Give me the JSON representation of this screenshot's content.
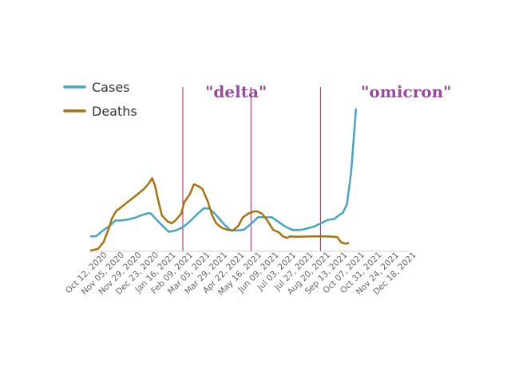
{
  "chart_data": {
    "type": "line",
    "title": "",
    "xlabel": "",
    "ylabel": "",
    "x_ticks": [
      "Oct 12, 2020",
      "Nov 05, 2020",
      "Nov 29, 2020",
      "Dec 23, 2020",
      "Jan 16, 2021",
      "Feb 09, 2021",
      "Mar 05, 2021",
      "Mar 29, 2021",
      "Apr 22, 2021",
      "May 16, 2021",
      "Jun 09, 2021",
      "Jul 03, 2021",
      "Jul 27, 2021",
      "Aug 20, 2021",
      "Sep 13, 2021",
      "Oct 07, 2021",
      "Oct 31, 2021",
      "Nov 24, 2021",
      "Dec 18, 2021"
    ],
    "x_range": [
      "2020-10-12",
      "2022-01-12"
    ],
    "y_scale": "relative (no y-axis shown)",
    "ylim": [
      0,
      100
    ],
    "grid": false,
    "legend_position": "top-left",
    "series": [
      {
        "name": "Cases",
        "color": "#45a6c4",
        "points": [
          [
            "2020-10-12",
            10.6
          ],
          [
            "2020-10-19",
            10.6
          ],
          [
            "2020-10-29",
            14.6
          ],
          [
            "2020-11-08",
            18.0
          ],
          [
            "2020-11-16",
            21.7
          ],
          [
            "2020-11-24",
            21.7
          ],
          [
            "2020-12-04",
            22.4
          ],
          [
            "2020-12-14",
            23.6
          ],
          [
            "2020-12-24",
            25.5
          ],
          [
            "2021-01-02",
            26.8
          ],
          [
            "2021-01-06",
            26.7
          ],
          [
            "2021-01-14",
            22.4
          ],
          [
            "2021-01-26",
            16.5
          ],
          [
            "2021-02-01",
            13.7
          ],
          [
            "2021-02-11",
            14.8
          ],
          [
            "2021-02-21",
            16.9
          ],
          [
            "2021-03-03",
            21.0
          ],
          [
            "2021-03-13",
            25.9
          ],
          [
            "2021-03-23",
            30.2
          ],
          [
            "2021-03-31",
            30.2
          ],
          [
            "2021-04-10",
            25.5
          ],
          [
            "2021-04-20",
            19.7
          ],
          [
            "2021-04-30",
            15.0
          ],
          [
            "2021-05-10",
            14.6
          ],
          [
            "2021-05-20",
            15.3
          ],
          [
            "2021-05-30",
            19.3
          ],
          [
            "2021-06-09",
            24.0
          ],
          [
            "2021-06-19",
            24.0
          ],
          [
            "2021-06-29",
            24.0
          ],
          [
            "2021-07-09",
            20.6
          ],
          [
            "2021-07-19",
            17.2
          ],
          [
            "2021-07-29",
            15.0
          ],
          [
            "2021-08-08",
            15.0
          ],
          [
            "2021-08-18",
            16.0
          ],
          [
            "2021-08-28",
            17.3
          ],
          [
            "2021-09-07",
            19.6
          ],
          [
            "2021-09-17",
            22.1
          ],
          [
            "2021-09-27",
            22.8
          ],
          [
            "2021-10-03",
            25.2
          ],
          [
            "2021-10-09",
            27.0
          ],
          [
            "2021-10-15",
            33.1
          ],
          [
            "2021-10-21",
            55.4
          ],
          [
            "2021-10-28",
            100.0
          ]
        ]
      },
      {
        "name": "Deaths",
        "color": "#a8720f",
        "points": [
          [
            "2020-10-12",
            0.7
          ],
          [
            "2020-10-18",
            1.3
          ],
          [
            "2020-10-22",
            1.7
          ],
          [
            "2020-10-30",
            6.5
          ],
          [
            "2020-11-07",
            16.6
          ],
          [
            "2020-11-11",
            23.1
          ],
          [
            "2020-11-17",
            28.3
          ],
          [
            "2020-11-25",
            31.3
          ],
          [
            "2020-12-03",
            34.5
          ],
          [
            "2020-12-11",
            37.5
          ],
          [
            "2020-12-19",
            40.7
          ],
          [
            "2020-12-27",
            43.8
          ],
          [
            "2021-01-04",
            48.4
          ],
          [
            "2021-01-08",
            51.5
          ],
          [
            "2021-01-12",
            46.3
          ],
          [
            "2021-01-16",
            37.1
          ],
          [
            "2021-01-22",
            25.3
          ],
          [
            "2021-01-30",
            21.1
          ],
          [
            "2021-02-05",
            19.7
          ],
          [
            "2021-02-11",
            22.0
          ],
          [
            "2021-02-19",
            26.7
          ],
          [
            "2021-02-23",
            34.6
          ],
          [
            "2021-03-03",
            40.1
          ],
          [
            "2021-03-09",
            47.2
          ],
          [
            "2021-03-15",
            46.0
          ],
          [
            "2021-03-21",
            44.1
          ],
          [
            "2021-03-29",
            35.1
          ],
          [
            "2021-04-04",
            25.6
          ],
          [
            "2021-04-10",
            19.8
          ],
          [
            "2021-04-18",
            16.6
          ],
          [
            "2021-04-26",
            15.2
          ],
          [
            "2021-05-04",
            14.6
          ],
          [
            "2021-05-12",
            18.0
          ],
          [
            "2021-05-18",
            23.7
          ],
          [
            "2021-05-26",
            26.6
          ],
          [
            "2021-06-03",
            28.0
          ],
          [
            "2021-06-07",
            28.3
          ],
          [
            "2021-06-15",
            26.5
          ],
          [
            "2021-06-23",
            21.4
          ],
          [
            "2021-07-01",
            15.1
          ],
          [
            "2021-07-09",
            13.4
          ],
          [
            "2021-07-15",
            10.5
          ],
          [
            "2021-07-21",
            9.5
          ],
          [
            "2021-07-25",
            10.5
          ],
          [
            "2021-08-04",
            10.3
          ],
          [
            "2021-08-24",
            10.5
          ],
          [
            "2021-09-15",
            10.5
          ],
          [
            "2021-09-21",
            10.4
          ],
          [
            "2021-10-01",
            10.1
          ],
          [
            "2021-10-07",
            6.2
          ],
          [
            "2021-10-13",
            5.4
          ],
          [
            "2021-10-17",
            5.9
          ]
        ]
      }
    ],
    "annotations": [
      {
        "label": "\"delta\"",
        "color": "#9b4a9b",
        "line_color": "#c2185b",
        "x_start": "2021-02-21",
        "x_end": "2021-05-30"
      },
      {
        "label": "\"omicron\"",
        "color": "#9b4a9b",
        "line_color": "#c2185b",
        "x_start": "2021-09-07"
      }
    ]
  }
}
